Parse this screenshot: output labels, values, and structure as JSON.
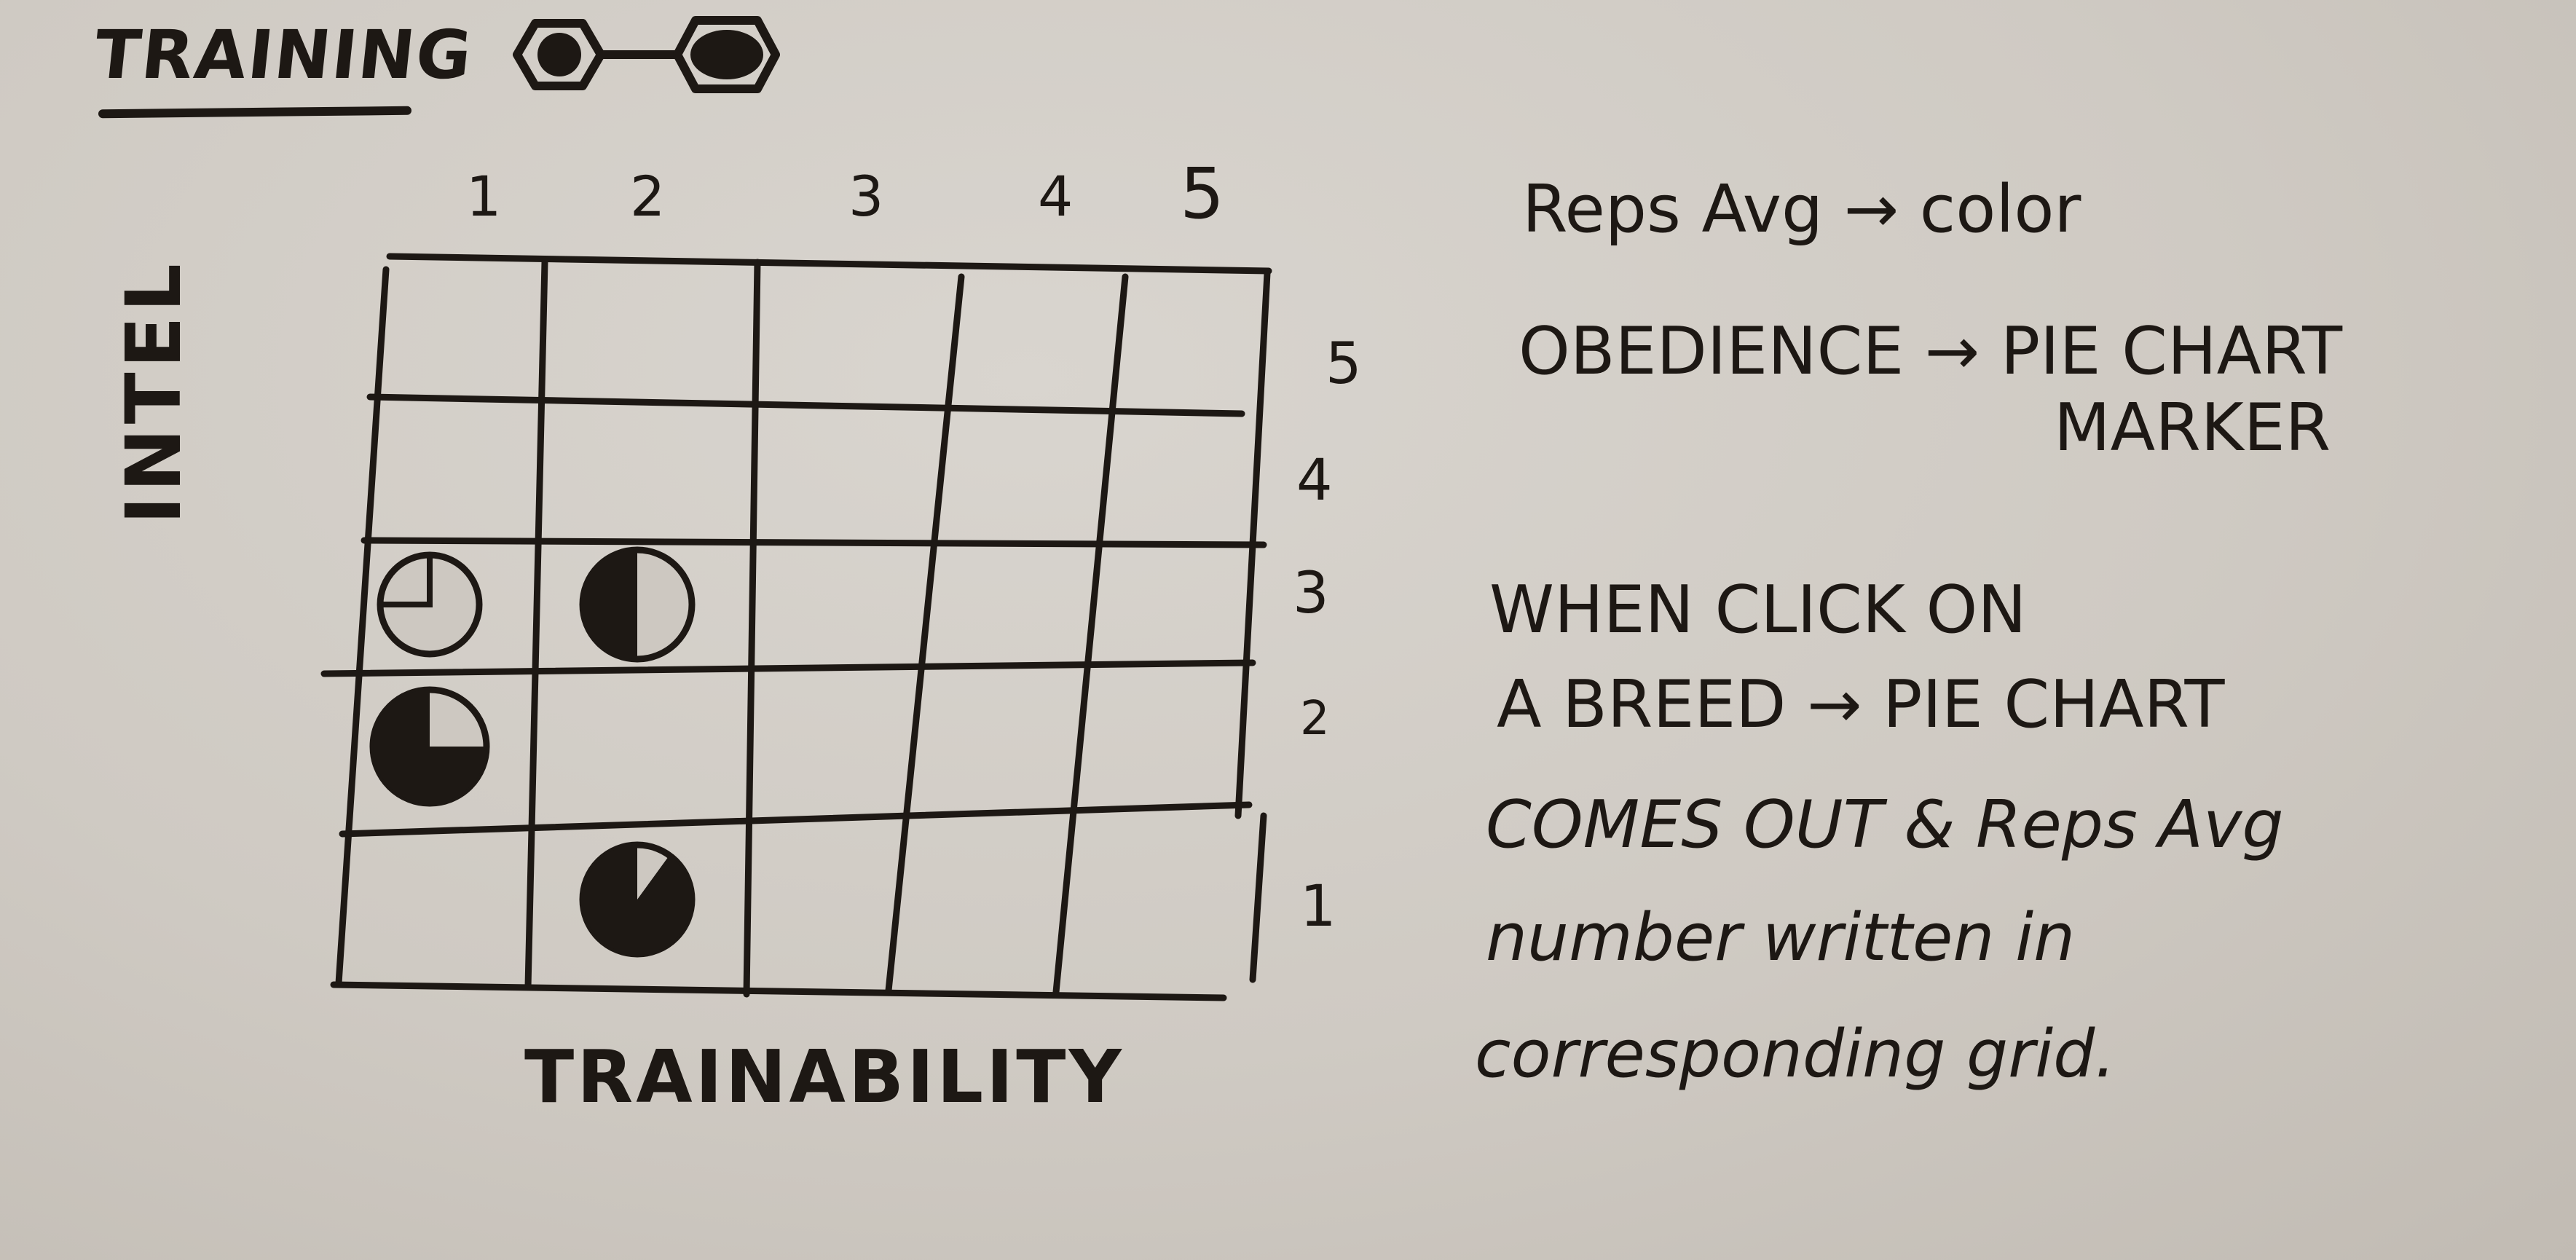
{
  "title": "TRAINING",
  "toggle": {
    "icon": "hexagon-toggle-icon"
  },
  "axes": {
    "x_title": "TRAINABILITY",
    "y_title": "INTEL",
    "x_ticks": [
      "1",
      "2",
      "3",
      "4",
      "5"
    ],
    "y_ticks": [
      "5",
      "4",
      "3",
      "2",
      "1"
    ]
  },
  "notes": [
    "Reps Avg → color",
    "OBEDIENCE → PIE CHART",
    "MARKER",
    "WHEN CLICK ON",
    "A BREED → PIE CHART",
    "COMES OUT & Reps Avg",
    "number written in",
    "corresponding grid."
  ],
  "chart_data": {
    "type": "scatter",
    "xlabel": "TRAINABILITY",
    "ylabel": "INTEL",
    "xlim": [
      1,
      5
    ],
    "ylim": [
      1,
      5
    ],
    "x_ticks": [
      1,
      2,
      3,
      4,
      5
    ],
    "y_ticks": [
      1,
      2,
      3,
      4,
      5
    ],
    "grid": true,
    "marker": "pie",
    "points": [
      {
        "x": 1,
        "y": 3,
        "pie_fraction": 0.25
      },
      {
        "x": 2,
        "y": 3,
        "pie_fraction": 0.5
      },
      {
        "x": 1,
        "y": 2,
        "pie_fraction": 0.75
      },
      {
        "x": 2,
        "y": 1,
        "pie_fraction": 0.9
      }
    ]
  },
  "colors": {
    "ink": "#1d1814",
    "board": "#cdc8c1"
  }
}
